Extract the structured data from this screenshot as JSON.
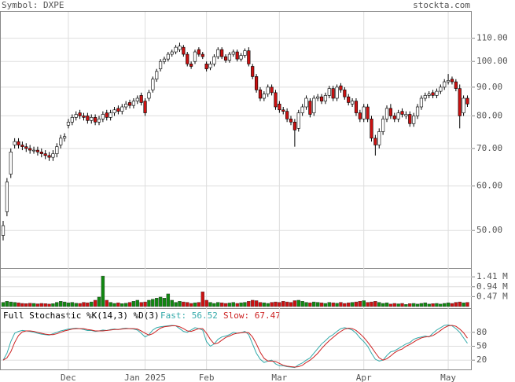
{
  "chart_data": [
    {
      "type": "candlestick",
      "title": "Symbol: DXPE",
      "source": "stockta.com",
      "log_scale": true,
      "grid": true,
      "up_color": "#ffffff",
      "down_color": "#cc1111",
      "categories": [
        null,
        null,
        null,
        null,
        null,
        null,
        null,
        null,
        null,
        null,
        null,
        null,
        null,
        null,
        null,
        null,
        null,
        "Dec",
        null,
        null,
        null,
        null,
        null,
        null,
        null,
        null,
        null,
        null,
        null,
        null,
        null,
        null,
        null,
        null,
        null,
        null,
        null,
        "Jan 2025",
        null,
        null,
        null,
        null,
        null,
        null,
        null,
        null,
        null,
        null,
        null,
        null,
        null,
        null,
        null,
        "Feb",
        null,
        null,
        null,
        null,
        null,
        null,
        null,
        null,
        null,
        null,
        null,
        null,
        null,
        null,
        null,
        null,
        null,
        null,
        "Mar",
        null,
        null,
        null,
        null,
        null,
        null,
        null,
        null,
        null,
        null,
        null,
        null,
        null,
        null,
        null,
        null,
        null,
        null,
        null,
        null,
        null,
        "Apr",
        null,
        null,
        null,
        null,
        null,
        null,
        null,
        null,
        null,
        null,
        null,
        null,
        null,
        null,
        null,
        null,
        null,
        null,
        null,
        null,
        null,
        "May",
        null,
        null,
        null,
        null,
        null
      ],
      "open": [
        49,
        54,
        63,
        71,
        72,
        71,
        70.5,
        70,
        69.5,
        69.5,
        69,
        68.5,
        68,
        67.5,
        68.5,
        71,
        73,
        77,
        78,
        79.5,
        81,
        80,
        80,
        78.5,
        79.5,
        78,
        79,
        81,
        79.5,
        81,
        82.5,
        81.5,
        83,
        84.5,
        83.5,
        85,
        87,
        85,
        86,
        89,
        93,
        97,
        100,
        101,
        103,
        104,
        105,
        106,
        103,
        99,
        100,
        105,
        103,
        99,
        97.5,
        99,
        102,
        105,
        102,
        100.5,
        103,
        104,
        101,
        102.5,
        104.5,
        98,
        94,
        89,
        86,
        87.5,
        90,
        88,
        84,
        82,
        81.5,
        79,
        78,
        76,
        81,
        83,
        85,
        81,
        86,
        86.5,
        85,
        87,
        89.5,
        86,
        90.5,
        89,
        86.5,
        84,
        85,
        81,
        79,
        83,
        79,
        73,
        71,
        75,
        79,
        82.5,
        80,
        79,
        81.5,
        80,
        80.5,
        77.5,
        80,
        83,
        86,
        87,
        88,
        87,
        88.5,
        90,
        92,
        93,
        92,
        89.5,
        81,
        86
      ],
      "high": [
        52,
        62,
        70,
        73,
        73,
        72,
        71.5,
        71,
        70.5,
        70.5,
        70,
        69.5,
        69,
        69.5,
        71.5,
        74,
        74.5,
        79,
        80.5,
        81.5,
        82,
        81,
        81,
        80.5,
        80.5,
        80,
        81.5,
        82,
        82,
        83,
        83.5,
        84,
        85,
        85.5,
        86,
        87,
        88,
        86,
        89,
        94,
        97,
        101,
        102,
        104,
        105,
        107,
        108,
        107,
        104,
        100,
        105,
        106,
        104,
        100,
        100,
        103,
        106,
        106,
        103,
        104,
        105,
        105,
        103.5,
        105.5,
        106,
        99,
        95,
        90,
        88.5,
        91,
        91,
        89,
        85,
        83,
        82.5,
        80,
        79,
        82,
        84,
        87,
        86,
        87,
        87.5,
        87.5,
        88,
        90.5,
        90.5,
        91,
        91.5,
        90,
        87.5,
        86,
        86,
        82,
        84,
        84,
        80,
        74,
        76,
        80,
        83.5,
        84,
        81,
        82,
        82.5,
        81.5,
        81.5,
        81,
        84,
        87,
        88,
        88.5,
        89,
        89.5,
        91,
        93,
        95,
        94,
        93,
        91,
        87,
        87
      ],
      "low": [
        48,
        53,
        62,
        70,
        70,
        69.5,
        69,
        68.5,
        68.5,
        68,
        67.5,
        67,
        66.5,
        66.5,
        67.5,
        70,
        72,
        76,
        77,
        78.5,
        79,
        78.5,
        77.5,
        77.5,
        77,
        77,
        78,
        78.5,
        78.5,
        80,
        80.5,
        80.5,
        82,
        82.5,
        82.5,
        84,
        83.5,
        80,
        85,
        88,
        92,
        96,
        99,
        100,
        102,
        103,
        104,
        102,
        98,
        97,
        99,
        102,
        101,
        96,
        96.5,
        98,
        101,
        101,
        99.5,
        99.5,
        102,
        100,
        100,
        101.5,
        98,
        93,
        88,
        85,
        85,
        86.5,
        87,
        82,
        81,
        80.5,
        78,
        77,
        70.5,
        75,
        80,
        82,
        79.5,
        80,
        85,
        84,
        84,
        86,
        85,
        85,
        88,
        85.5,
        83.5,
        83,
        80,
        78,
        78,
        78,
        72,
        68,
        70,
        74,
        78,
        79,
        78,
        78,
        79.5,
        79,
        76.5,
        76.5,
        79,
        82,
        85,
        86,
        86,
        86,
        87.5,
        89,
        91,
        91,
        88.5,
        76,
        80,
        83
      ],
      "close": [
        51,
        61,
        69,
        72,
        71,
        70.5,
        70,
        69.5,
        69.5,
        69,
        68.5,
        68,
        67.5,
        68.5,
        70.5,
        73,
        73.5,
        78,
        79.5,
        80.5,
        80,
        79.5,
        78.5,
        79.5,
        78,
        79,
        80.5,
        79.5,
        81,
        82,
        81.5,
        83,
        84,
        83.5,
        85,
        86,
        84.5,
        81,
        88,
        93,
        96,
        100,
        101,
        103,
        104,
        106,
        106.5,
        103,
        99,
        98,
        104,
        103,
        102,
        97,
        99,
        102,
        105,
        102,
        100.5,
        103,
        104,
        101,
        102.5,
        104.5,
        99,
        94,
        89,
        86,
        87.5,
        90,
        88,
        83,
        82,
        81.5,
        79,
        78,
        75.5,
        81,
        83,
        86,
        80.5,
        86,
        86.5,
        85,
        87,
        89.5,
        86,
        90,
        89,
        86.5,
        84.5,
        85,
        81,
        79,
        83,
        79,
        73,
        71,
        75,
        79,
        82.5,
        80,
        79,
        81,
        80.5,
        80.5,
        77.5,
        80,
        83,
        86,
        87,
        87.5,
        87,
        88.5,
        90,
        92,
        92.5,
        92,
        89.5,
        80,
        86,
        84
      ],
      "ylim": [
        43,
        123
      ],
      "yticks": [
        {
          "value": 50,
          "label": "50.00"
        },
        {
          "value": 60,
          "label": "60.00"
        },
        {
          "value": 70,
          "label": "70.00"
        },
        {
          "value": 80,
          "label": "80.00"
        },
        {
          "value": 90,
          "label": "90.00"
        },
        {
          "value": 100,
          "label": "100.00"
        },
        {
          "value": 110,
          "label": "110.00"
        }
      ]
    },
    {
      "type": "bar",
      "up_color": "#118811",
      "down_color": "#cc1111",
      "grid": true,
      "values": [
        0.2,
        0.25,
        0.22,
        0.2,
        0.18,
        0.15,
        0.14,
        0.16,
        0.15,
        0.13,
        0.15,
        0.14,
        0.12,
        0.14,
        0.2,
        0.25,
        0.22,
        0.18,
        0.2,
        0.16,
        0.15,
        0.2,
        0.18,
        0.22,
        0.3,
        0.45,
        1.45,
        0.3,
        0.2,
        0.15,
        0.18,
        0.14,
        0.16,
        0.2,
        0.25,
        0.3,
        0.2,
        0.22,
        0.3,
        0.35,
        0.4,
        0.45,
        0.4,
        0.6,
        0.3,
        0.2,
        0.25,
        0.22,
        0.2,
        0.15,
        0.18,
        0.2,
        0.7,
        0.3,
        0.2,
        0.15,
        0.2,
        0.18,
        0.15,
        0.17,
        0.2,
        0.15,
        0.18,
        0.2,
        0.25,
        0.3,
        0.28,
        0.2,
        0.18,
        0.15,
        0.2,
        0.22,
        0.2,
        0.25,
        0.22,
        0.2,
        0.28,
        0.3,
        0.25,
        0.2,
        0.18,
        0.22,
        0.2,
        0.18,
        0.15,
        0.2,
        0.18,
        0.16,
        0.2,
        0.15,
        0.18,
        0.2,
        0.22,
        0.25,
        0.28,
        0.2,
        0.22,
        0.25,
        0.2,
        0.15,
        0.18,
        0.12,
        0.15,
        0.13,
        0.15,
        0.1,
        0.14,
        0.15,
        0.12,
        0.15,
        0.18,
        0.12,
        0.14,
        0.15,
        0.12,
        0.15,
        0.18,
        0.15,
        0.2,
        0.22,
        0.18,
        0.2
      ],
      "ylim": [
        0,
        1.79
      ],
      "yticks": [
        {
          "value": 0.47,
          "label": "0.47 M"
        },
        {
          "value": 0.94,
          "label": "0.94 M"
        },
        {
          "value": 1.41,
          "label": "1.41 M"
        }
      ]
    },
    {
      "type": "line",
      "title": "Full Stochastic %K(14,3) %D(3)",
      "grid": true,
      "series": [
        {
          "name": "Fast: 56.52",
          "color": "#33aaaa",
          "values": [
            20,
            35,
            60,
            78,
            82,
            84,
            83,
            82,
            80,
            78,
            76,
            75,
            74,
            77,
            80,
            83,
            85,
            87,
            88,
            89,
            88,
            86,
            84,
            84,
            82,
            83,
            85,
            84,
            86,
            87,
            86,
            88,
            89,
            88,
            87,
            85,
            78,
            70,
            75,
            85,
            90,
            92,
            93,
            94,
            95,
            94,
            88,
            82,
            80,
            85,
            90,
            88,
            85,
            60,
            50,
            55,
            65,
            70,
            72,
            75,
            80,
            78,
            79,
            82,
            75,
            55,
            35,
            22,
            15,
            18,
            20,
            12,
            8,
            8,
            6,
            5,
            4,
            10,
            14,
            20,
            25,
            35,
            45,
            55,
            62,
            70,
            75,
            82,
            88,
            90,
            88,
            85,
            78,
            68,
            60,
            50,
            35,
            22,
            18,
            20,
            30,
            38,
            40,
            45,
            50,
            55,
            58,
            65,
            68,
            70,
            72,
            70,
            78,
            85,
            90,
            95,
            96,
            94,
            88,
            80,
            68,
            56.52
          ]
        },
        {
          "name": "Slow: 67.47",
          "color": "#cc2222",
          "values": [
            20,
            25,
            38,
            58,
            73,
            81,
            83,
            83,
            82,
            80,
            78,
            76,
            75,
            75,
            77,
            80,
            83,
            85,
            87,
            88,
            88,
            88,
            86,
            85,
            83,
            83,
            83,
            84,
            85,
            86,
            86,
            87,
            88,
            88,
            88,
            87,
            83,
            78,
            74,
            77,
            83,
            89,
            92,
            93,
            94,
            94,
            92,
            88,
            83,
            82,
            85,
            88,
            88,
            78,
            65,
            55,
            57,
            63,
            69,
            72,
            76,
            78,
            79,
            80,
            79,
            70,
            55,
            37,
            24,
            18,
            18,
            17,
            13,
            9,
            7,
            6,
            5,
            6,
            9,
            15,
            20,
            27,
            35,
            45,
            54,
            62,
            69,
            76,
            82,
            87,
            89,
            88,
            84,
            77,
            69,
            59,
            48,
            36,
            25,
            20,
            23,
            29,
            36,
            41,
            44,
            50,
            54,
            59,
            64,
            68,
            70,
            71,
            73,
            78,
            84,
            90,
            94,
            95,
            93,
            87,
            79,
            67.47
          ]
        }
      ],
      "ylim": [
        0,
        100
      ],
      "yticks": [
        20,
        50,
        80
      ]
    }
  ]
}
